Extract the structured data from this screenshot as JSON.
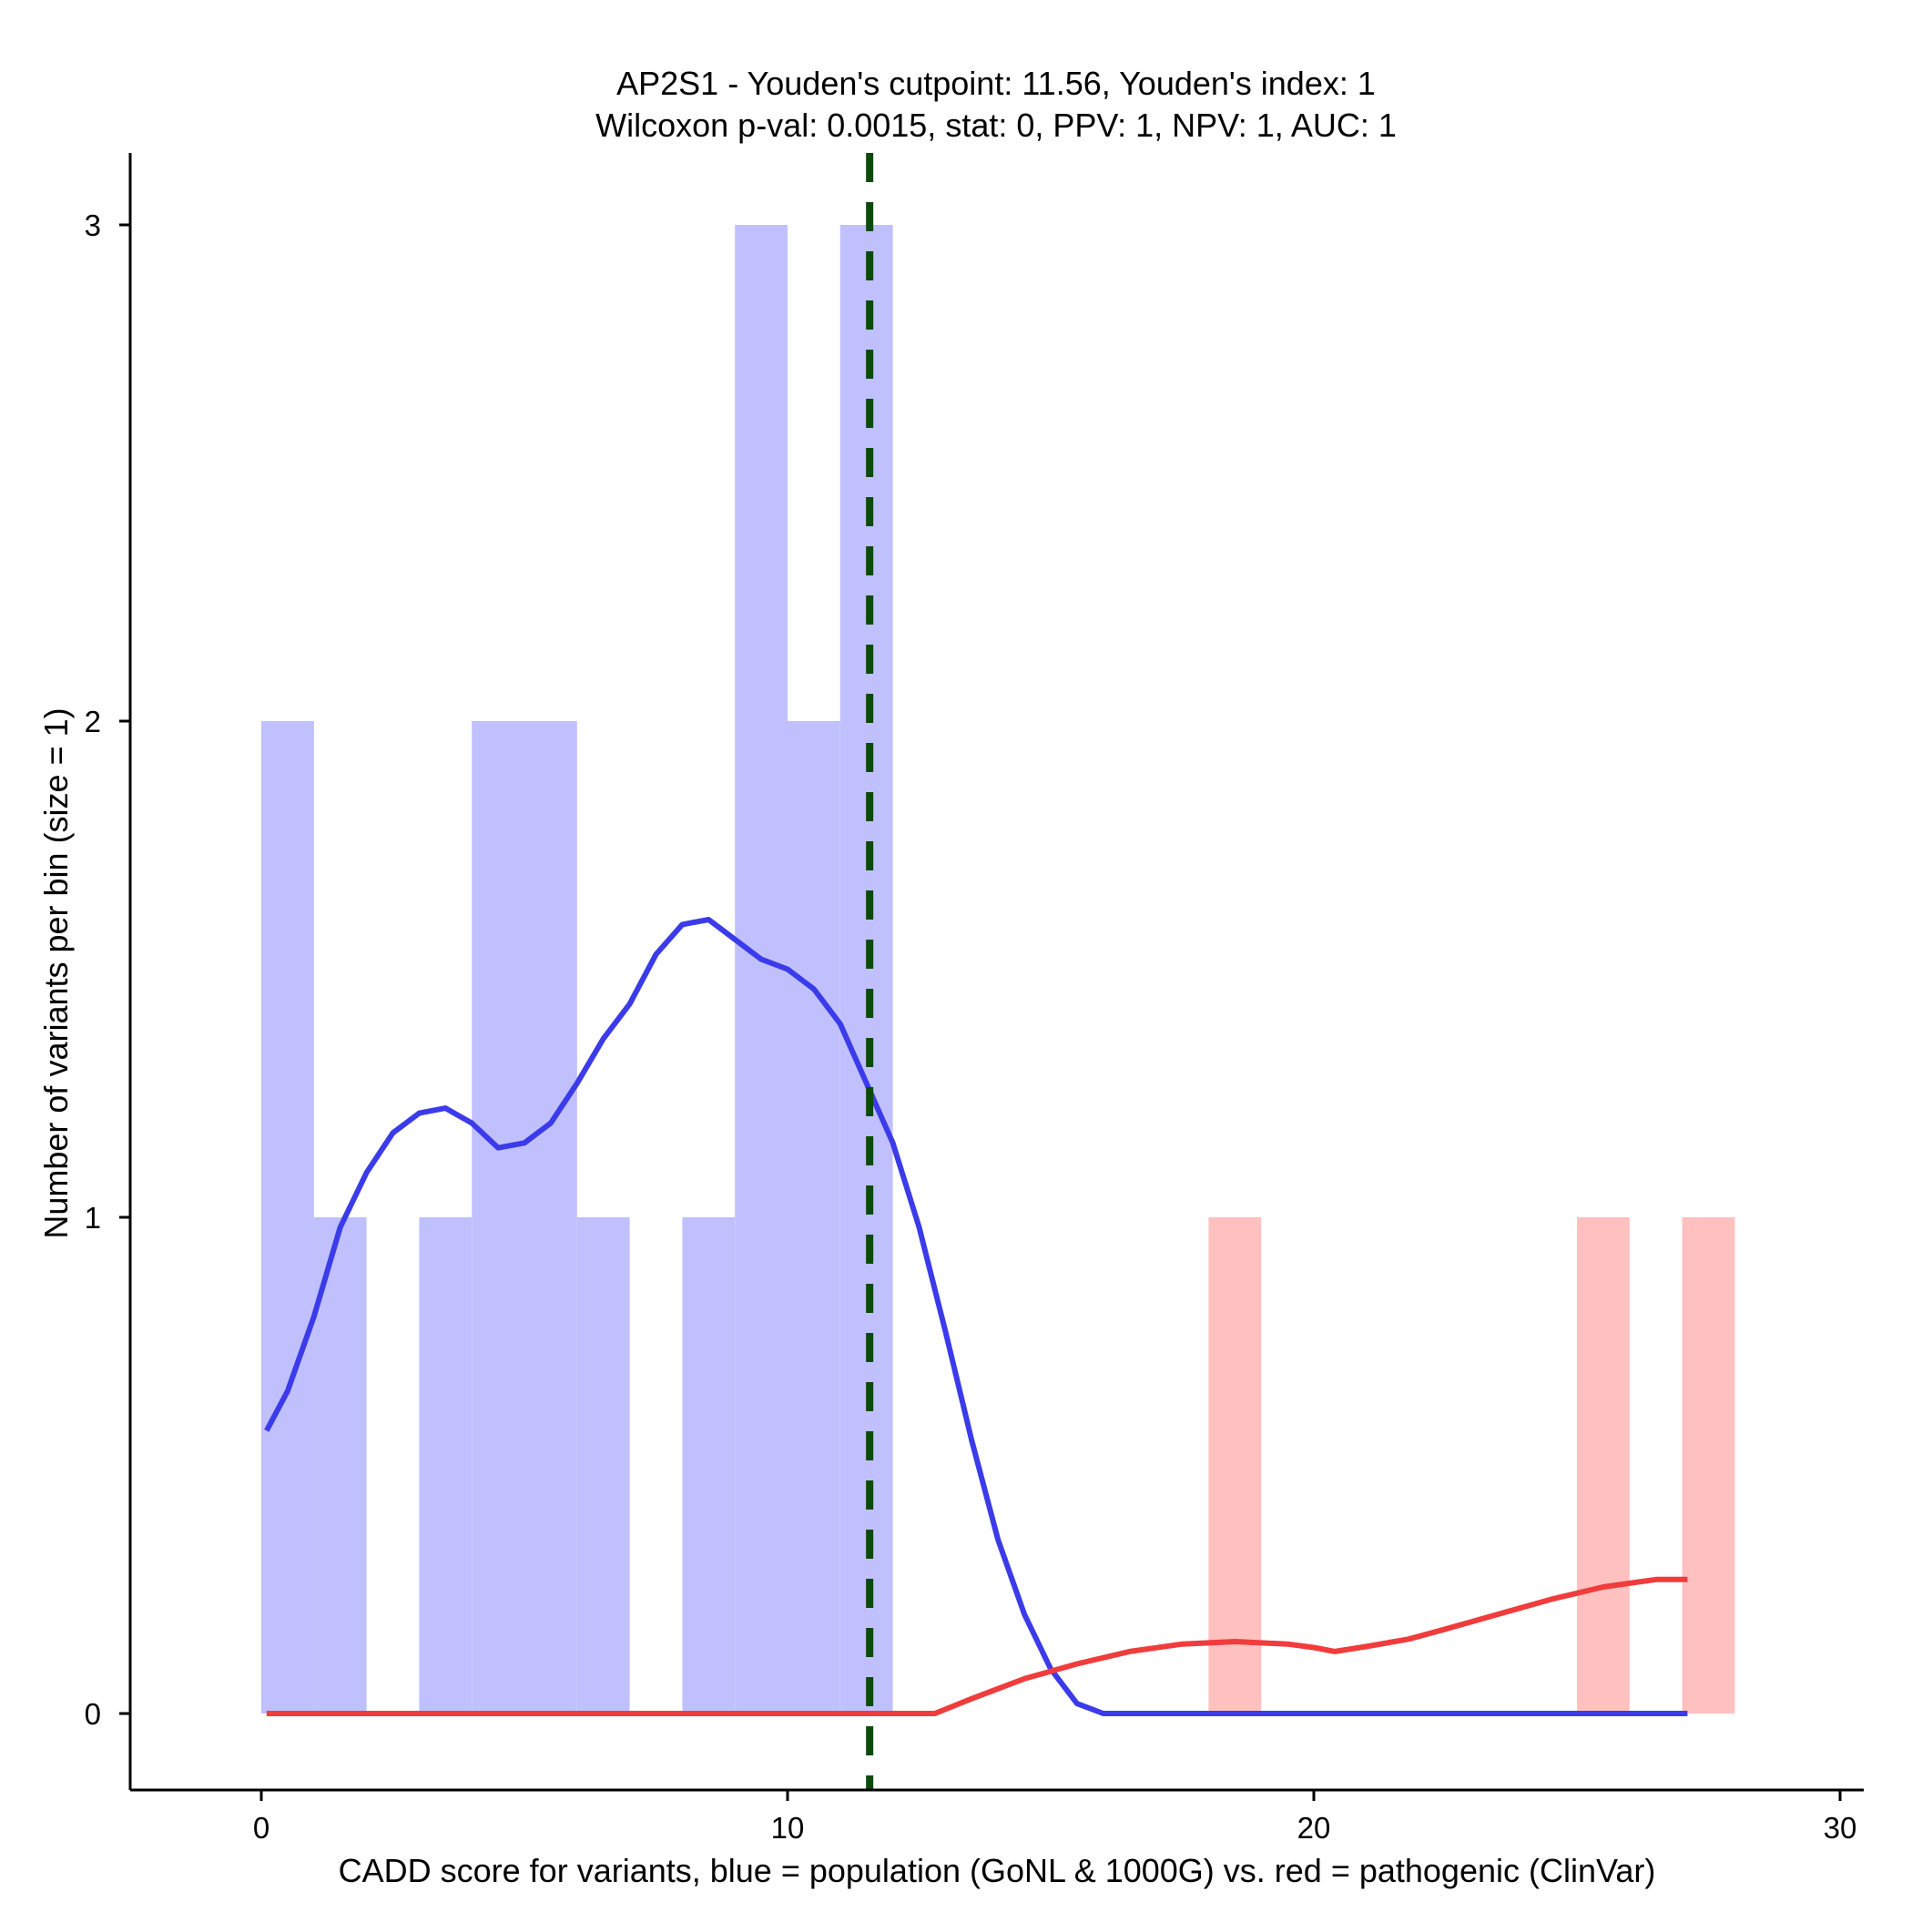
{
  "chart_data": {
    "type": "bar",
    "title": "AP2S1 - Youden's cutpoint: 11.56, Youden's index: 1",
    "subtitle": "Wilcoxon p-val: 0.0015, stat: 0, PPV: 1, NPV: 1, AUC: 1",
    "xlabel": "CADD score for variants, blue = population (GoNL & 1000G) vs. red = pathogenic (ClinVar)",
    "ylabel": "Number of variants per bin (size = 1)",
    "xlim": [
      -2.5,
      30.5
    ],
    "ylim": [
      -0.15,
      3.15
    ],
    "x_ticks": [
      0,
      10,
      20,
      30
    ],
    "y_ticks": [
      0,
      1,
      2,
      3
    ],
    "grid": false,
    "bin_size": 1,
    "cutpoint": 11.56,
    "cutpoint_color": "#0b4a0b",
    "series": [
      {
        "name": "population (GoNL & 1000G)",
        "bar_color": "#c0c0ff",
        "line_color": "#3b3bea",
        "bins": [
          {
            "start": 0,
            "count": 2
          },
          {
            "start": 1,
            "count": 1
          },
          {
            "start": 3,
            "count": 1
          },
          {
            "start": 4,
            "count": 2
          },
          {
            "start": 5,
            "count": 2
          },
          {
            "start": 6,
            "count": 1
          },
          {
            "start": 8,
            "count": 1
          },
          {
            "start": 9,
            "count": 3
          },
          {
            "start": 10,
            "count": 2
          },
          {
            "start": 11,
            "count": 3
          }
        ],
        "density": {
          "x": [
            0.1,
            0.5,
            1.0,
            1.5,
            2.0,
            2.5,
            3.0,
            3.5,
            4.0,
            4.5,
            5.0,
            5.5,
            6.0,
            6.5,
            7.0,
            7.5,
            8.0,
            8.5,
            9.0,
            9.5,
            10.0,
            10.5,
            11.0,
            11.5,
            12.0,
            12.5,
            13.0,
            13.5,
            14.0,
            14.5,
            15.0,
            15.5,
            16.0,
            17.0,
            19.0,
            21.0,
            23.0,
            25.0,
            27.1
          ],
          "y": [
            0.57,
            0.65,
            0.8,
            0.98,
            1.09,
            1.17,
            1.21,
            1.22,
            1.19,
            1.14,
            1.15,
            1.19,
            1.27,
            1.36,
            1.43,
            1.53,
            1.59,
            1.6,
            1.56,
            1.52,
            1.5,
            1.46,
            1.39,
            1.27,
            1.15,
            0.98,
            0.77,
            0.55,
            0.35,
            0.2,
            0.09,
            0.02,
            0.0,
            0.0,
            0.0,
            0.0,
            0.0,
            0.0,
            0.0
          ]
        }
      },
      {
        "name": "pathogenic (ClinVar)",
        "bar_color": "#ffc0c0",
        "line_color": "#f03c3c",
        "bins": [
          {
            "start": 18,
            "count": 1
          },
          {
            "start": 25,
            "count": 1
          },
          {
            "start": 27,
            "count": 1
          }
        ],
        "density": {
          "x": [
            0.1,
            5.0,
            10.0,
            12.8,
            13.5,
            14.5,
            15.5,
            16.5,
            17.5,
            18.5,
            19.5,
            20.0,
            20.4,
            21.0,
            21.8,
            22.5,
            23.5,
            24.5,
            25.5,
            26.5,
            27.1
          ],
          "y": [
            0.0,
            0.0,
            0.0,
            0.0,
            0.03,
            0.07,
            0.1,
            0.125,
            0.14,
            0.145,
            0.14,
            0.133,
            0.125,
            0.135,
            0.15,
            0.17,
            0.2,
            0.23,
            0.255,
            0.27,
            0.27
          ]
        }
      }
    ]
  }
}
